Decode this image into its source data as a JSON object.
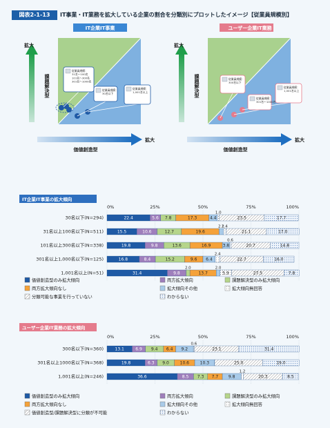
{
  "header": {
    "figure_number": "図表2-1-13",
    "title": "IT事業・IT業務を拡大している企業の割合を分類別にプロットしたイメージ【従業員規模別】"
  },
  "diagrams": [
    {
      "tag": "IT企業IT事業",
      "tag_color": "#3a87d4",
      "y_axis_label": "課題解決型",
      "y_top_label": "拡大",
      "x_axis_label": "価値創造型",
      "x_right_label": "拡大",
      "callouts": [
        {
          "lines": [
            "従業員規模：",
            "31名～100名",
            "101名～300名",
            "301名～1000名"
          ]
        },
        {
          "lines": [
            "従業員規模：",
            "30名以下"
          ]
        },
        {
          "lines": [
            "従業員規模：",
            "1,001名以上"
          ]
        }
      ]
    },
    {
      "tag": "ユーザー企業IT業務",
      "tag_color": "#e57b8c",
      "y_axis_label": "課題解決型",
      "y_top_label": "拡大",
      "x_axis_label": "価値創造型",
      "x_right_label": "拡大",
      "callouts": [
        {
          "lines": [
            "従業員規模：",
            "300名以下"
          ]
        },
        {
          "lines": [
            "従業員規模：",
            "301名～1000名"
          ]
        },
        {
          "lines": [
            "従業員規模：",
            "1,001名以上"
          ]
        }
      ]
    }
  ],
  "chart_data": [
    {
      "type": "bar",
      "orientation": "horizontal-stacked-100",
      "title": "IT企業IT事業の拡大傾向",
      "title_color": "#2e6fbf",
      "axis_ticks": [
        "0%",
        "25%",
        "50%",
        "75%",
        "100%"
      ],
      "xlim": [
        0,
        100
      ],
      "categories": [
        "30名以下(N=294)",
        "31名以上100名以下(N=511)",
        "101名以上300名以下(N=338)",
        "301名以上1,000名以下(N=125)",
        "1,001名以上(N=51)"
      ],
      "series": [
        {
          "name": "価値創造型のみ拡大傾向",
          "color": "#1f5aa5",
          "text_color": "#ffffff",
          "pattern": "solid",
          "values": [
            22.4,
            15.5,
            19.8,
            16.8,
            31.4
          ]
        },
        {
          "name": "両方拡大傾向",
          "color": "#9f7fbc",
          "text_color": "#ffffff",
          "pattern": "solid",
          "values": [
            5.6,
            10.6,
            9.8,
            8.4,
            9.8
          ]
        },
        {
          "name": "課題解決型のみ拡大傾向",
          "color": "#b6d58a",
          "text_color": "#222222",
          "pattern": "solid",
          "values": [
            7.8,
            12.7,
            13.6,
            15.2,
            2.0
          ]
        },
        {
          "name": "両方拡大傾向なし",
          "color": "#f5a23a",
          "text_color": "#222222",
          "pattern": "solid",
          "values": [
            17.3,
            19.6,
            16.9,
            9.6,
            13.7
          ]
        },
        {
          "name": "拡大傾向その他",
          "color": "#a9cbe9",
          "text_color": "#222222",
          "pattern": "solid",
          "values": [
            4.4,
            2.2,
            3.8,
            6.4,
            2.0
          ]
        },
        {
          "name": "拡大傾向無回答",
          "color": "#ffffff",
          "text_color": "#222222",
          "pattern": "dots",
          "values": [
            1.0,
            1.4,
            0.6,
            2.4,
            5.9
          ]
        },
        {
          "name": "分類可能な事業を行っていない",
          "color": "#ffffff",
          "text_color": "#222222",
          "pattern": "hatch",
          "values": [
            23.5,
            21.1,
            20.7,
            22.7,
            27.5
          ]
        },
        {
          "name": "わからない",
          "color": "#ffffff",
          "text_color": "#222222",
          "pattern": "dots-blue",
          "values": [
            17.7,
            17.0,
            14.8,
            16.0,
            7.8
          ]
        }
      ],
      "shown_labels": [
        [
          "22.4",
          "5.6",
          "7.8",
          "17.3",
          "4.4",
          "1.0",
          "23.5",
          "17.7"
        ],
        [
          "15.5",
          "10.6",
          "12.7",
          "19.6",
          "2.2",
          "1.4",
          "21.1",
          "17.0"
        ],
        [
          "19.8",
          "9.8",
          "13.6",
          "16.9",
          "3.8",
          "0.6",
          "20.7",
          "14.8"
        ],
        [
          "16.8",
          "8.4",
          "15.2",
          "9.6",
          "6.4",
          "2.4",
          "22.7",
          "16.0"
        ],
        [
          "31.4",
          "9.8",
          "2.0",
          "13.7",
          "2.0",
          "5.9",
          "27.5",
          "7.8"
        ]
      ],
      "legend": [
        "価値創造型のみ拡大傾向",
        "両方拡大傾向",
        "課題解決型のみ拡大傾向",
        "両方拡大傾向なし",
        "拡大傾向その他",
        "拡大傾向無回答",
        "分類可能な事業を行っていない",
        "わからない"
      ]
    },
    {
      "type": "bar",
      "orientation": "horizontal-stacked-100",
      "title": "ユーザー企業IT業務の拡大傾向",
      "title_color": "#e57b8c",
      "axis_ticks": [
        "0%",
        "25%",
        "50%",
        "75%",
        "100%"
      ],
      "xlim": [
        0,
        100
      ],
      "categories": [
        "300名以下(N=360)",
        "301名以上1000名以下(N=368)",
        "1,001名以上(N=246)"
      ],
      "series": [
        {
          "name": "価値創造型のみ拡大傾向",
          "color": "#1f5aa5",
          "text_color": "#ffffff",
          "pattern": "solid",
          "values": [
            13.1,
            19.8,
            36.6
          ]
        },
        {
          "name": "両方拡大傾向",
          "color": "#9f7fbc",
          "text_color": "#ffffff",
          "pattern": "solid",
          "values": [
            6.9,
            6.3,
            8.5
          ]
        },
        {
          "name": "課題解決型のみ拡大傾向",
          "color": "#b6d58a",
          "text_color": "#222222",
          "pattern": "solid",
          "values": [
            9.4,
            9.0,
            7.3
          ]
        },
        {
          "name": "両方拡大傾向なし",
          "color": "#f5a23a",
          "text_color": "#222222",
          "pattern": "solid",
          "values": [
            6.4,
            10.6,
            7.7
          ]
        },
        {
          "name": "拡大傾向その他",
          "color": "#a9cbe9",
          "text_color": "#222222",
          "pattern": "solid",
          "values": [
            9.2,
            10.3,
            9.8
          ]
        },
        {
          "name": "拡大傾向無回答",
          "color": "#ffffff",
          "text_color": "#222222",
          "pattern": "dots",
          "values": [
            0.6,
            0.1,
            1.2
          ]
        },
        {
          "name": "価値創造型/課題解決型に分類が不可能",
          "color": "#ffffff",
          "text_color": "#222222",
          "pattern": "hatch",
          "values": [
            23.1,
            25.0,
            20.3
          ]
        },
        {
          "name": "わからない",
          "color": "#ffffff",
          "text_color": "#222222",
          "pattern": "dots-blue",
          "values": [
            31.4,
            19.0,
            8.5
          ]
        }
      ],
      "shown_labels": [
        [
          "13.1",
          "6.9",
          "9.4",
          "6.4",
          "9.2",
          "0.6",
          "23.1",
          "31.4"
        ],
        [
          "19.8",
          "6.3",
          "9.0",
          "10.6",
          "10.3",
          "",
          "25.0",
          "19.0"
        ],
        [
          "36.6",
          "8.5",
          "7.3",
          "7.7",
          "9.8",
          "1.2",
          "20.3",
          "8.5"
        ]
      ],
      "legend": [
        "価値創造型のみ拡大傾向",
        "両方拡大傾向",
        "課題解決型のみ拡大傾向",
        "両方拡大傾向なし",
        "拡大傾向その他",
        "拡大傾向無回答",
        "価値創造型/課題解決型に分類が不可能",
        "わからない"
      ]
    }
  ]
}
